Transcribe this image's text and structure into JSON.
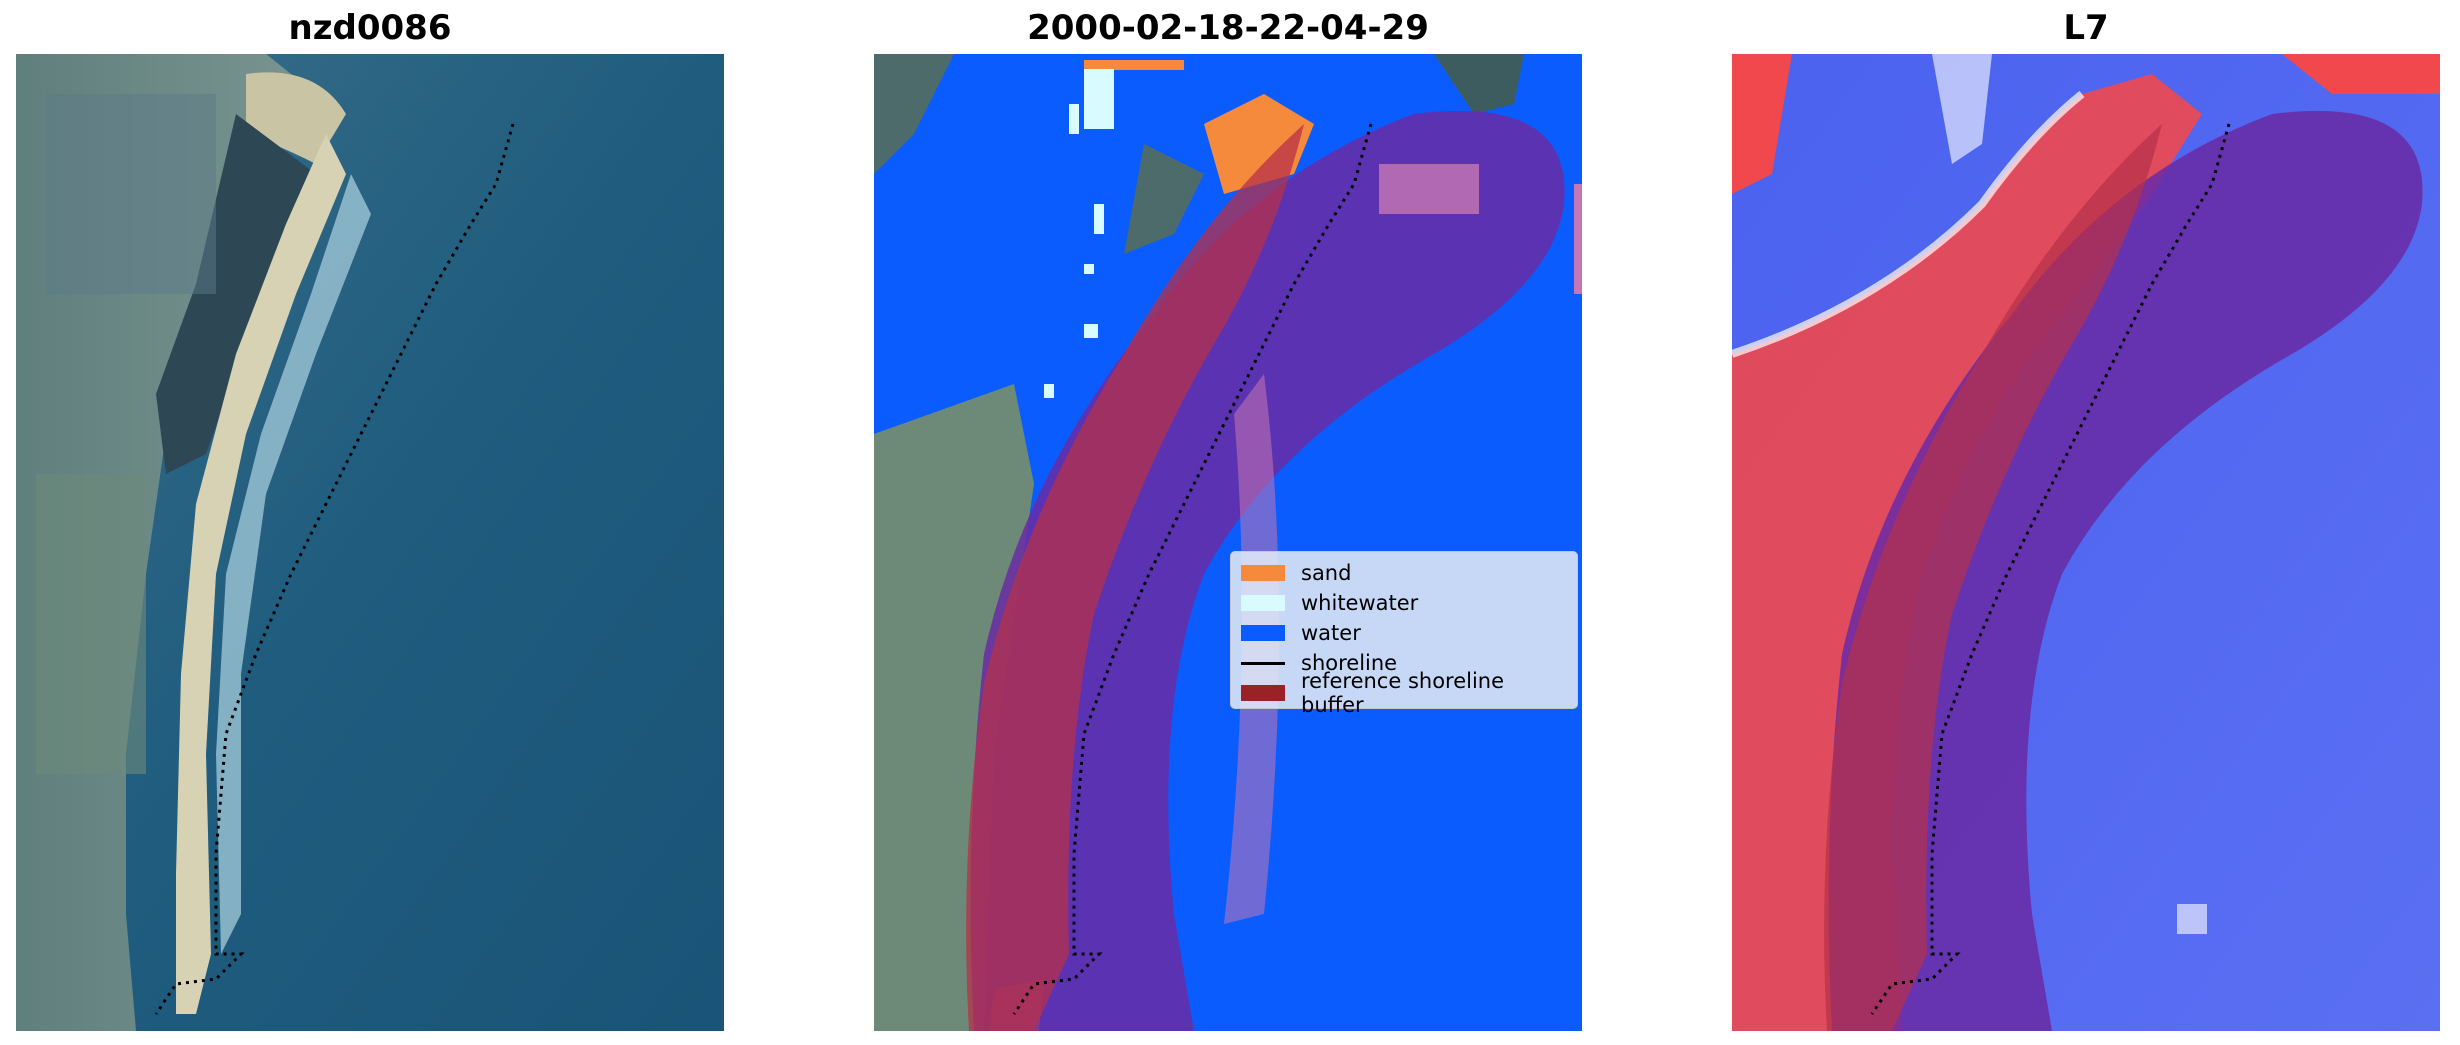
{
  "panels": {
    "left_title": "nzd0086",
    "middle_title": "2000-02-18-22-04-29",
    "right_title": "L7"
  },
  "legend": {
    "items": [
      {
        "label": "sand",
        "color": "#f58a3c"
      },
      {
        "label": "whitewater",
        "color": "#d8fbff"
      },
      {
        "label": "water",
        "color": "#0a5cff"
      },
      {
        "label": "shoreline",
        "color": "#000000"
      },
      {
        "label": "reference shoreline buffer",
        "color": "#9a2226"
      }
    ]
  },
  "colors": {
    "buffer": "#8e2a6b",
    "water": "#0a5cff",
    "sand": "#f58a3c",
    "whitewater": "#d8fbff",
    "land": "#6f8a86"
  }
}
